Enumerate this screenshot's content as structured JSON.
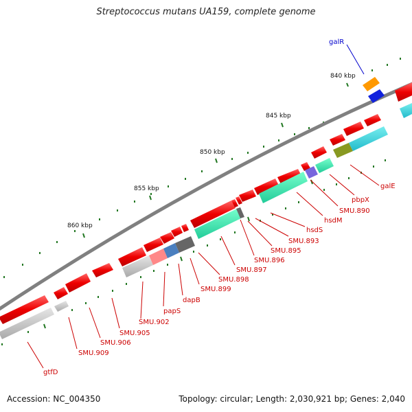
{
  "title": "Streptococcus mutans UA159, complete genome",
  "footer": {
    "accession": "Accession: NC_004350",
    "summary": "Topology: circular; Length: 2,030,921 bp; Genes: 2,040"
  },
  "colors": {
    "backbone": "#7a7a7a",
    "forward_gene": "#ee0000",
    "cds_teal": "#22ddaa",
    "cds_cyan": "#22ccdd",
    "cds_gray": "#bbbbbb",
    "cds_dark": "#666666",
    "cds_pink": "#ff8888",
    "cds_slate": "#4a7fbf",
    "cds_olive": "#889922",
    "cds_purple": "#7766dd",
    "galR_orange": "#ff9900",
    "galR_blue": "#1122dd",
    "tick": "#227722",
    "label_red": "#cc0000",
    "label_blue": "#0000cc"
  },
  "kbp_labels": [
    "840 kbp",
    "845 kbp",
    "850 kbp",
    "855 kbp",
    "860 kbp"
  ],
  "gene_labels": {
    "galR": "galR",
    "galE": "galE",
    "pbpX": "pbpX",
    "SMU_890": "SMU.890",
    "hsdM": "hsdM",
    "hsdS": "hsdS",
    "SMU_893": "SMU.893",
    "SMU_895": "SMU.895",
    "SMU_896": "SMU.896",
    "SMU_897": "SMU.897",
    "SMU_898": "SMU.898",
    "SMU_899": "SMU.899",
    "dapB": "dapB",
    "papS": "papS",
    "SMU_902": "SMU.902",
    "SMU_905": "SMU.905",
    "SMU_906": "SMU.906",
    "SMU_909": "SMU.909",
    "gtfD": "gtfD"
  }
}
